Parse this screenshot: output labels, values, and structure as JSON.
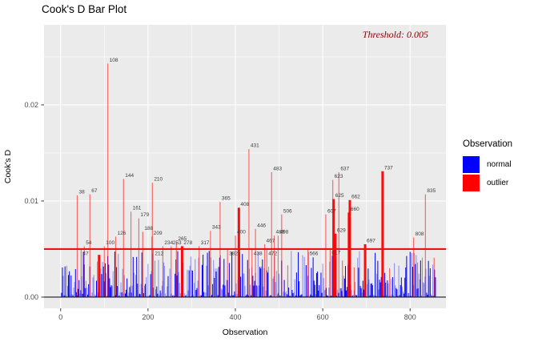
{
  "chart_data": {
    "type": "bar",
    "title": "Cook's D Bar Plot",
    "xlabel": "Observation",
    "ylabel": "Cook's D",
    "x_ticks": [
      0,
      200,
      400,
      600,
      800
    ],
    "y_ticks": [
      {
        "v": 0,
        "label": "0.00"
      },
      {
        "v": 0.01,
        "label": "0.01"
      },
      {
        "v": 0.02,
        "label": "0.02"
      }
    ],
    "x_minor": [
      100,
      300,
      500,
      700
    ],
    "y_minor": [
      0.005,
      0.015,
      0.025
    ],
    "xlim": [
      -38,
      882
    ],
    "ylim": [
      -0.00117,
      0.02833
    ],
    "grid": "on",
    "legend_position": "right",
    "threshold": {
      "value": 0.005,
      "label": "Threshold: 0.005",
      "text_color": "#8B0000",
      "line_color": "#EE1111"
    },
    "zero_line_color": "#1A1A1A",
    "panel_bg": "#EBEBEB",
    "grid_color": "#FFFFFF",
    "normal_color": "#0000FF",
    "outlier_color": "#FF0000",
    "label_color": "#3C3C3C",
    "tick_color": "#4D4D4D",
    "legend": {
      "title": "Observation",
      "items": [
        {
          "label": "normal",
          "color": "#0000FF"
        },
        {
          "label": "outlier",
          "color": "#FF0000"
        }
      ]
    },
    "outliers": [
      {
        "i": 38,
        "v": 0.0106
      },
      {
        "i": 47,
        "v": 0.005,
        "b": 1
      },
      {
        "i": 54,
        "v": 0.0053
      },
      {
        "i": 67,
        "v": 0.0107
      },
      {
        "i": 100,
        "v": 0.0053
      },
      {
        "i": 108,
        "v": 0.0243
      },
      {
        "i": 126,
        "v": 0.0063
      },
      {
        "i": 144,
        "v": 0.0123
      },
      {
        "i": 161,
        "v": 0.0089
      },
      {
        "i": 179,
        "v": 0.0082
      },
      {
        "i": 188,
        "v": 0.0068
      },
      {
        "i": 209,
        "v": 0.0063
      },
      {
        "i": 210,
        "v": 0.0119
      },
      {
        "i": 212,
        "v": 0.005,
        "b": 1
      },
      {
        "i": 234,
        "v": 0.0053
      },
      {
        "i": 253,
        "v": 0.0053
      },
      {
        "i": 265,
        "v": 0.0057
      },
      {
        "i": 278,
        "v": 0.0053,
        "w": 3
      },
      {
        "i": 317,
        "v": 0.0053
      },
      {
        "i": 343,
        "v": 0.0069
      },
      {
        "i": 365,
        "v": 0.0099
      },
      {
        "i": 382,
        "v": 0.005,
        "b": 1
      },
      {
        "i": 400,
        "v": 0.0064
      },
      {
        "i": 408,
        "v": 0.0093,
        "w": 3
      },
      {
        "i": 431,
        "v": 0.0154
      },
      {
        "i": 438,
        "v": 0.005,
        "b": 1
      },
      {
        "i": 446,
        "v": 0.0071
      },
      {
        "i": 467,
        "v": 0.0055
      },
      {
        "i": 472,
        "v": 0.005,
        "b": 1
      },
      {
        "i": 483,
        "v": 0.013
      },
      {
        "i": 489,
        "v": 0.0064
      },
      {
        "i": 498,
        "v": 0.0064
      },
      {
        "i": 506,
        "v": 0.0086
      },
      {
        "i": 566,
        "v": 0.005,
        "b": 1
      },
      {
        "i": 607,
        "v": 0.0086
      },
      {
        "i": 617,
        "v": 0.0051,
        "b": 1
      },
      {
        "i": 623,
        "v": 0.0122
      },
      {
        "i": 625,
        "v": 0.0102,
        "w": 3
      },
      {
        "i": 629,
        "v": 0.0066,
        "w": 3
      },
      {
        "i": 637,
        "v": 0.013
      },
      {
        "i": 660,
        "v": 0.0088,
        "w": 3
      },
      {
        "i": 662,
        "v": 0.0101,
        "w": 3
      },
      {
        "i": 697,
        "v": 0.0055,
        "w": 3
      },
      {
        "i": 737,
        "v": 0.0131,
        "w": 3
      },
      {
        "i": 808,
        "v": 0.0062
      },
      {
        "i": 835,
        "v": 0.0107
      }
    ],
    "unlabeled_outliers": [
      {
        "i": 88,
        "v": 0.0044,
        "w": 3
      },
      {
        "i": 300,
        "v": 0.0028
      },
      {
        "i": 520,
        "v": 0.0033
      },
      {
        "i": 645,
        "v": 0.0038
      },
      {
        "i": 672,
        "v": 0.0031
      },
      {
        "i": 753,
        "v": 0.003
      },
      {
        "i": 817,
        "v": 0.0036
      },
      {
        "i": 855,
        "v": 0.0041
      }
    ],
    "normal_bars_note": "approx 860 observations with Cook's D below 0.005 threshold",
    "normal_gen": {
      "count_step": 2,
      "max_obs": 858,
      "max_v": 0.0047,
      "seed": 77
    }
  }
}
